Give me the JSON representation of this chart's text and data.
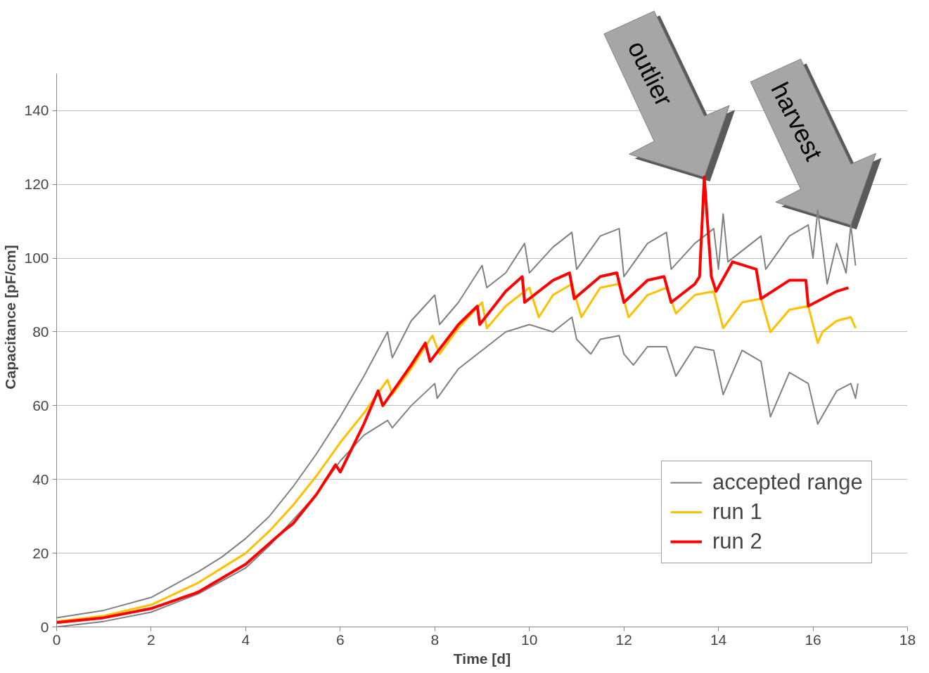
{
  "chart_data": {
    "type": "line",
    "xlabel": "Time [d]",
    "ylabel": "Capacitance [pF/cm]",
    "xlim": [
      0,
      18
    ],
    "ylim": [
      0,
      150
    ],
    "xticks": [
      0,
      2,
      4,
      6,
      8,
      10,
      12,
      14,
      16,
      18
    ],
    "yticks": [
      0,
      20,
      40,
      60,
      80,
      100,
      120,
      140
    ],
    "grid": "y",
    "legend": "bottom right",
    "marker": "none",
    "line_style": "solid",
    "annotations": [
      {
        "text": "outlier",
        "x": 13.7,
        "y": 122
      },
      {
        "text": "harvest",
        "x": 16.8,
        "y": 109
      }
    ],
    "series": [
      {
        "name": "accepted range",
        "color": "#808080",
        "x": [
          0,
          1,
          2,
          3,
          3.5,
          4,
          4.5,
          5,
          5.5,
          6,
          6.5,
          7,
          7.1,
          7.5,
          8,
          8.1,
          8.5,
          9,
          9.1,
          9.5,
          9.9,
          10,
          10.5,
          10.9,
          11,
          11.5,
          11.9,
          12,
          12.5,
          12.9,
          13,
          13.5,
          13.9,
          14,
          14.1,
          14.2,
          14.5,
          14.9,
          15,
          15.5,
          15.9,
          16,
          16.1,
          16.3,
          16.5,
          16.7,
          16.8,
          16.9
        ],
        "values": [
          2.5,
          4.5,
          8,
          15,
          19,
          24,
          30,
          38,
          47,
          57,
          68,
          80,
          73,
          83,
          90,
          82,
          88,
          98,
          92,
          96,
          104,
          96,
          103,
          107,
          97,
          106,
          108,
          95,
          104,
          107,
          97,
          104,
          108,
          97,
          112,
          99,
          102,
          106,
          97,
          106,
          109,
          100,
          113,
          93,
          104,
          96,
          109,
          98
        ]
      },
      {
        "color": "#808080",
        "x": [
          0,
          1,
          2,
          3,
          4,
          4.5,
          5,
          5.5,
          6,
          6.5,
          7,
          7.1,
          7.5,
          8,
          8.05,
          8.5,
          9,
          9.5,
          10,
          10.5,
          10.9,
          11,
          11.3,
          11.5,
          11.9,
          12,
          12.2,
          12.5,
          12.9,
          13.1,
          13.5,
          13.9,
          14.1,
          14.5,
          14.9,
          15.1,
          15.5,
          15.9,
          16.1,
          16.5,
          16.8,
          16.9,
          16.95
        ],
        "values": [
          0,
          1.5,
          4,
          9,
          16,
          22,
          29,
          36,
          45,
          52,
          56,
          54,
          60,
          66,
          62,
          70,
          75,
          80,
          82,
          80,
          84,
          78,
          74,
          78,
          79,
          74,
          71,
          76,
          76,
          68,
          76,
          75,
          63,
          75,
          72,
          57,
          69,
          66,
          55,
          64,
          66,
          62,
          66
        ]
      },
      {
        "name": "run 1",
        "color": "#ffc000",
        "x": [
          0,
          1,
          2,
          3,
          4,
          4.5,
          5,
          5.5,
          6,
          6.5,
          7,
          7.1,
          7.5,
          7.95,
          8.1,
          8.5,
          9,
          9.1,
          9.5,
          10,
          10.2,
          10.5,
          10.9,
          11.1,
          11.5,
          11.9,
          12.1,
          12.5,
          12.9,
          13.1,
          13.5,
          13.9,
          14.1,
          14.5,
          14.9,
          15.1,
          15.5,
          15.9,
          16.1,
          16.2,
          16.5,
          16.8,
          16.9
        ],
        "values": [
          1.5,
          3,
          6,
          12,
          20,
          26,
          33,
          41,
          50,
          58,
          67,
          63,
          70,
          79,
          74,
          81,
          88,
          81,
          87,
          92,
          84,
          90,
          93,
          84,
          92,
          93,
          84,
          90,
          92,
          85,
          90,
          91,
          81,
          88,
          89,
          80,
          86,
          87,
          77,
          80,
          83,
          84,
          81
        ]
      },
      {
        "name": "run 2",
        "color": "#ff0000",
        "x": [
          0,
          1,
          2,
          2.9,
          3,
          4,
          4.8,
          5,
          5.5,
          5.9,
          6,
          6.5,
          6.8,
          6.9,
          7.5,
          7.8,
          7.9,
          8.5,
          8.9,
          8.95,
          9.5,
          9.85,
          9.9,
          10.5,
          10.85,
          10.95,
          11.5,
          11.85,
          12,
          12.5,
          12.85,
          13,
          13.5,
          13.6,
          13.7,
          13.85,
          13.95,
          14.3,
          14.8,
          14.9,
          15.5,
          15.85,
          15.9,
          16.5,
          16.75
        ],
        "values": [
          1.2,
          2.5,
          5,
          9,
          9.5,
          17,
          26,
          28,
          36,
          44,
          42,
          55,
          64,
          60,
          71,
          77,
          72,
          82,
          87,
          82,
          91,
          95,
          88,
          94,
          96,
          89,
          95,
          96,
          88,
          94,
          95,
          88,
          93,
          95,
          122,
          95,
          91,
          99,
          97,
          89,
          94,
          94,
          87,
          91,
          92
        ]
      }
    ]
  }
}
